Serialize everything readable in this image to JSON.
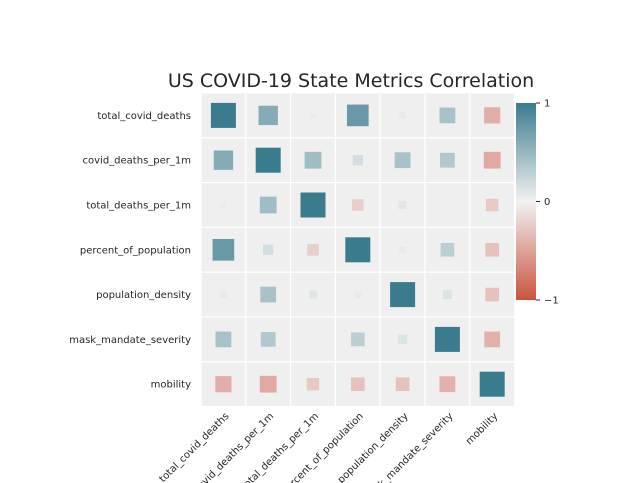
{
  "chart_data": {
    "type": "heatmap",
    "title": "US COVID-19 State Metrics Correlation",
    "variables": [
      "total_covid_deaths",
      "covid_deaths_per_1m",
      "total_deaths_per_1m",
      "percent_of_population",
      "population_density",
      "mask_mandate_severity",
      "mobility"
    ],
    "matrix": [
      [
        1.0,
        0.6,
        0.05,
        0.75,
        0.07,
        0.4,
        -0.42
      ],
      [
        0.6,
        1.0,
        0.45,
        0.17,
        0.4,
        0.35,
        -0.45
      ],
      [
        0.05,
        0.45,
        1.0,
        -0.22,
        0.1,
        0.0,
        -0.25
      ],
      [
        0.75,
        0.17,
        -0.22,
        1.0,
        0.07,
        0.3,
        -0.3
      ],
      [
        0.07,
        0.4,
        0.1,
        0.07,
        1.0,
        0.13,
        -0.3
      ],
      [
        0.4,
        0.35,
        0.0,
        0.3,
        0.13,
        1.0,
        -0.4
      ],
      [
        -0.42,
        -0.45,
        -0.25,
        -0.3,
        -0.3,
        -0.4,
        1.0
      ]
    ],
    "colorbar": {
      "min": -1,
      "max": 1,
      "ticks": [
        1,
        0,
        -1
      ],
      "tick_labels": [
        "1",
        "0",
        "−1"
      ]
    },
    "colors": {
      "positive": "#3b7b8e",
      "neutral": "#f2f2f2",
      "negative": "#c9533f",
      "cell_bg": "#efefef"
    }
  }
}
